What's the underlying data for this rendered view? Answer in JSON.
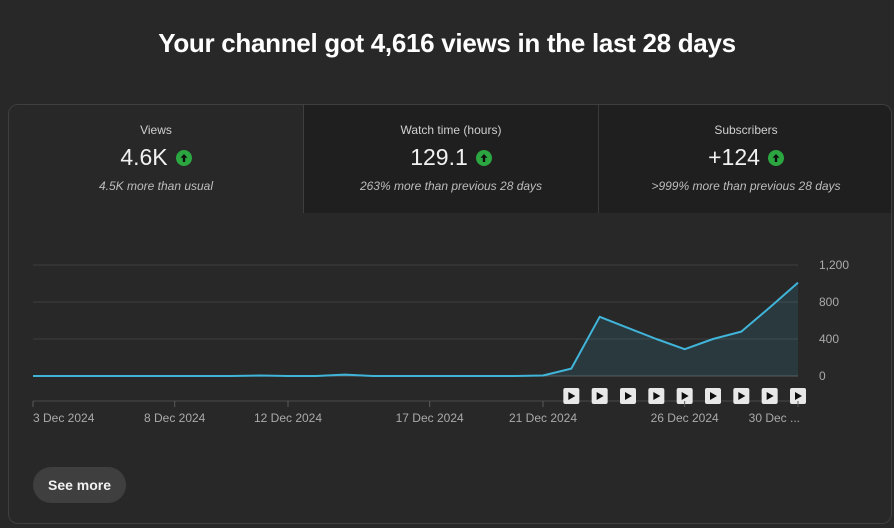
{
  "headline": "Your channel got 4,616 views in the last 28 days",
  "tabs": [
    {
      "label": "Views",
      "value": "4.6K",
      "subtext": "4.5K more than usual",
      "trend": "up"
    },
    {
      "label": "Watch time (hours)",
      "value": "129.1",
      "subtext": "263% more than previous 28 days",
      "trend": "up"
    },
    {
      "label": "Subscribers",
      "value": "+124",
      "subtext": ">999% more than previous 28 days",
      "trend": "up"
    }
  ],
  "see_more_label": "See more",
  "colors": {
    "line": "#41b4d9",
    "up": "#2ba640",
    "background": "#282828"
  },
  "chart_data": {
    "type": "area",
    "x": [
      "3 Dec 2024",
      "4 Dec 2024",
      "5 Dec 2024",
      "6 Dec 2024",
      "7 Dec 2024",
      "8 Dec 2024",
      "9 Dec 2024",
      "10 Dec 2024",
      "11 Dec 2024",
      "12 Dec 2024",
      "13 Dec 2024",
      "14 Dec 2024",
      "15 Dec 2024",
      "16 Dec 2024",
      "17 Dec 2024",
      "18 Dec 2024",
      "19 Dec 2024",
      "20 Dec 2024",
      "21 Dec 2024",
      "22 Dec 2024",
      "23 Dec 2024",
      "24 Dec 2024",
      "25 Dec 2024",
      "26 Dec 2024",
      "27 Dec 2024",
      "28 Dec 2024",
      "29 Dec 2024",
      "30 Dec 2024"
    ],
    "series": [
      {
        "values": [
          0,
          0,
          0,
          0,
          0,
          0,
          0,
          0,
          5,
          0,
          0,
          15,
          0,
          0,
          0,
          0,
          0,
          0,
          5,
          80,
          640,
          520,
          400,
          290,
          400,
          480,
          740,
          1010
        ]
      }
    ],
    "ylim": [
      0,
      1200
    ],
    "y_ticks": [
      "0",
      "400",
      "800",
      "1,200"
    ],
    "x_tick_labels": [
      {
        "index": 0,
        "label": "3 Dec 2024"
      },
      {
        "index": 5,
        "label": "8 Dec 2024"
      },
      {
        "index": 9,
        "label": "12 Dec 2024"
      },
      {
        "index": 14,
        "label": "17 Dec 2024"
      },
      {
        "index": 18,
        "label": "21 Dec 2024"
      },
      {
        "index": 23,
        "label": "26 Dec 2024"
      },
      {
        "index": 27,
        "label": "30 Dec ..."
      }
    ],
    "video_markers": [
      19,
      20,
      21,
      22,
      23,
      24,
      25,
      26,
      27
    ],
    "grid": true
  }
}
